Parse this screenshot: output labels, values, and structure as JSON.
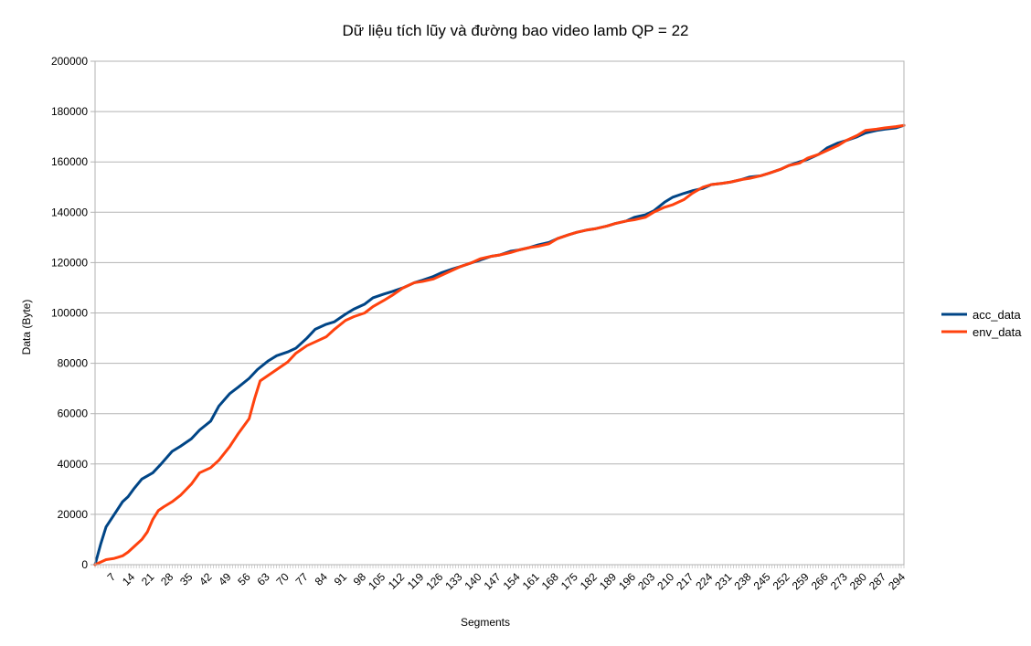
{
  "chart_data": {
    "type": "line",
    "title": "Dữ liệu tích lũy và đường bao video lamb QP = 22",
    "xlabel": "Segments",
    "ylabel": "Data (Byte)",
    "xlim": [
      0,
      294
    ],
    "ylim": [
      0,
      200000
    ],
    "yticks": [
      0,
      20000,
      40000,
      60000,
      80000,
      100000,
      120000,
      140000,
      160000,
      180000,
      200000
    ],
    "xticks": [
      7,
      14,
      21,
      28,
      35,
      42,
      49,
      56,
      63,
      70,
      77,
      84,
      91,
      98,
      105,
      112,
      119,
      126,
      133,
      140,
      147,
      154,
      161,
      168,
      175,
      182,
      189,
      196,
      203,
      210,
      217,
      224,
      231,
      238,
      245,
      252,
      259,
      266,
      273,
      280,
      287,
      294
    ],
    "grid": true,
    "legend_position": "right",
    "series": [
      {
        "name": "acc_data",
        "color": "#004586",
        "x": [
          0,
          2,
          4,
          7,
          10,
          12,
          14,
          17,
          21,
          24,
          28,
          31,
          35,
          38,
          42,
          45,
          49,
          52,
          56,
          59,
          63,
          66,
          70,
          73,
          77,
          80,
          84,
          87,
          91,
          94,
          98,
          101,
          105,
          108,
          112,
          116,
          119,
          123,
          126,
          130,
          133,
          137,
          140,
          144,
          147,
          151,
          154,
          158,
          161,
          165,
          168,
          172,
          175,
          179,
          182,
          186,
          189,
          193,
          196,
          200,
          203,
          207,
          210,
          214,
          217,
          221,
          224,
          228,
          231,
          235,
          238,
          242,
          245,
          249,
          252,
          256,
          259,
          263,
          266,
          270,
          273,
          277,
          280,
          284,
          287,
          291,
          294
        ],
        "y": [
          0,
          8000,
          15000,
          20000,
          25000,
          27000,
          30000,
          34000,
          36500,
          40000,
          45000,
          47000,
          50000,
          53500,
          57000,
          63000,
          68000,
          70500,
          74000,
          77500,
          81000,
          83000,
          84500,
          86000,
          90000,
          93500,
          95500,
          96500,
          99500,
          101500,
          103500,
          106000,
          107500,
          108500,
          110000,
          112000,
          113000,
          114500,
          116000,
          117500,
          118500,
          120000,
          121000,
          122500,
          123000,
          124500,
          125000,
          126000,
          127000,
          128000,
          129500,
          131000,
          132000,
          133000,
          133500,
          134500,
          135500,
          136500,
          138000,
          139000,
          140500,
          144000,
          146000,
          147500,
          148500,
          149500,
          151000,
          151500,
          152000,
          153000,
          154000,
          154500,
          155500,
          157000,
          158500,
          160000,
          161000,
          163000,
          165500,
          167500,
          168500,
          170000,
          171500,
          172500,
          173000,
          173500,
          174500
        ]
      },
      {
        "name": "env_data",
        "color": "#ff420e",
        "x": [
          0,
          2,
          4,
          7,
          10,
          12,
          14,
          17,
          19,
          21,
          23,
          25,
          28,
          31,
          35,
          38,
          42,
          45,
          49,
          52,
          56,
          58,
          60,
          62,
          66,
          70,
          73,
          77,
          80,
          84,
          87,
          91,
          94,
          98,
          101,
          105,
          108,
          112,
          116,
          119,
          123,
          126,
          130,
          133,
          137,
          140,
          144,
          147,
          151,
          154,
          158,
          161,
          165,
          168,
          172,
          175,
          179,
          182,
          186,
          189,
          193,
          196,
          200,
          203,
          207,
          210,
          214,
          217,
          221,
          224,
          228,
          231,
          235,
          238,
          242,
          245,
          249,
          252,
          256,
          259,
          263,
          266,
          270,
          273,
          277,
          280,
          284,
          287,
          291,
          294
        ],
        "y": [
          0,
          1000,
          2000,
          2500,
          3500,
          5000,
          7000,
          10000,
          13000,
          18000,
          21500,
          23000,
          25000,
          27500,
          32000,
          36500,
          38500,
          41500,
          47000,
          52000,
          58000,
          66000,
          73000,
          74500,
          77500,
          80500,
          84000,
          87000,
          88500,
          90500,
          93500,
          97000,
          98500,
          100000,
          102500,
          105000,
          107000,
          110000,
          112000,
          112500,
          113500,
          115000,
          117000,
          118500,
          120000,
          121500,
          122500,
          123000,
          124000,
          125000,
          126000,
          126500,
          127500,
          129500,
          131000,
          132000,
          133000,
          133500,
          134500,
          135500,
          136500,
          137000,
          138000,
          140000,
          142000,
          143000,
          145000,
          147500,
          150000,
          151000,
          151500,
          152000,
          153000,
          153500,
          154500,
          155500,
          157000,
          158500,
          159500,
          161500,
          163000,
          164500,
          166500,
          168500,
          170500,
          172500,
          173000,
          173500,
          174000,
          174500
        ]
      }
    ]
  }
}
